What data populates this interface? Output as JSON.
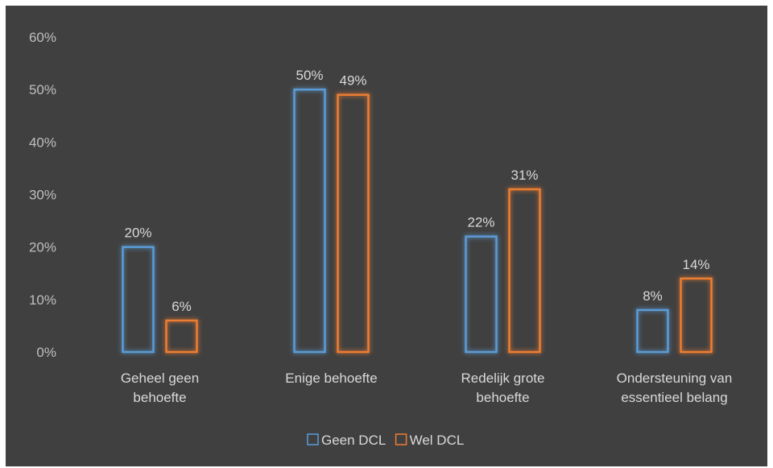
{
  "chart_data": {
    "type": "bar",
    "categories": [
      [
        "Geheel geen",
        "behoefte"
      ],
      [
        "Enige behoefte"
      ],
      [
        "Redelijk grote",
        "behoefte"
      ],
      [
        "Ondersteuning van",
        "essentieel belang"
      ]
    ],
    "series": [
      {
        "name": "Geen DCL",
        "values": [
          20,
          50,
          22,
          8
        ],
        "color": "#5b9bd5"
      },
      {
        "name": "Wel DCL",
        "values": [
          6,
          49,
          31,
          14
        ],
        "color": "#ed7d31"
      }
    ],
    "ylim": [
      0,
      60
    ],
    "yticks": [
      0,
      10,
      20,
      30,
      40,
      50,
      60
    ],
    "value_format": "percent",
    "legend_position": "bottom",
    "grid": false,
    "background": "#404040"
  }
}
